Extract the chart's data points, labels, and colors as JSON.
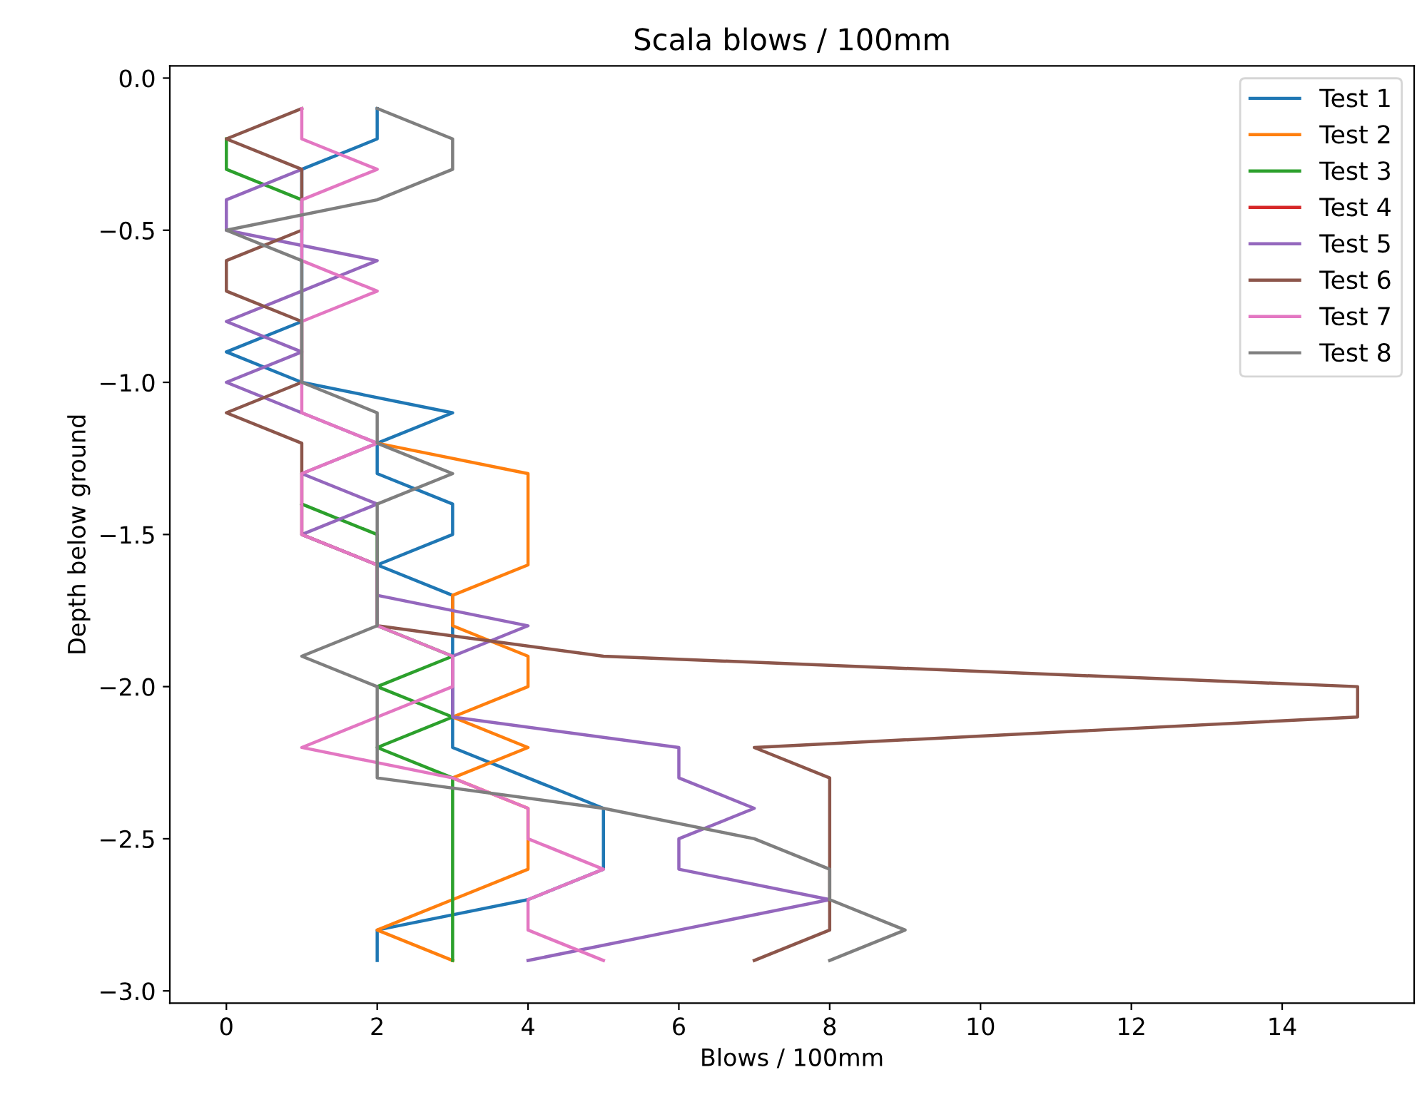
{
  "chart_data": {
    "type": "line",
    "title": "Scala blows / 100mm",
    "xlabel": "Blows / 100mm",
    "ylabel": "Depth below ground",
    "xlim": [
      -0.75,
      15.75
    ],
    "ylim": [
      -3.04,
      0.04
    ],
    "xticks": [
      0,
      2,
      4,
      6,
      8,
      10,
      12,
      14
    ],
    "yticks": [
      {
        "value": 0.0,
        "label": "0.0"
      },
      {
        "value": -0.5,
        "label": "−0.5"
      },
      {
        "value": -1.0,
        "label": "−1.0"
      },
      {
        "value": -1.5,
        "label": "−1.5"
      },
      {
        "value": -2.0,
        "label": "−2.0"
      },
      {
        "value": -2.5,
        "label": "−2.5"
      },
      {
        "value": -3.0,
        "label": "−3.0"
      }
    ],
    "grid": false,
    "legend": "top right",
    "marker": "none",
    "line_style": "solid",
    "series": [
      {
        "name": "Test 1",
        "color": "#1f77b4",
        "x": [
          2,
          2,
          1,
          1,
          1,
          1,
          1,
          1,
          0,
          1,
          3,
          2,
          2,
          3,
          3,
          2,
          3,
          3,
          3,
          3,
          3,
          3,
          4,
          5,
          5,
          5,
          4,
          2,
          2
        ],
        "values": [
          -0.1,
          -0.2,
          -0.3,
          -0.4,
          -0.5,
          -0.6,
          -0.7,
          -0.8,
          -0.9,
          -1.0,
          -1.1,
          -1.2,
          -1.3,
          -1.4,
          -1.5,
          -1.6,
          -1.7,
          -1.8,
          -1.9,
          -2.0,
          -2.1,
          -2.2,
          -2.3,
          -2.4,
          -2.5,
          -2.6,
          -2.7,
          -2.8,
          -2.9
        ]
      },
      {
        "name": "Test 2",
        "color": "#ff7f0e",
        "x": [
          2,
          4,
          4,
          4,
          4,
          3,
          3,
          4,
          4,
          3,
          4,
          3,
          4,
          4,
          4,
          3,
          2,
          3
        ],
        "values": [
          -1.2,
          -1.3,
          -1.4,
          -1.5,
          -1.6,
          -1.7,
          -1.8,
          -1.9,
          -2.0,
          -2.1,
          -2.2,
          -2.3,
          -2.4,
          -2.5,
          -2.6,
          -2.7,
          -2.8,
          -2.9
        ]
      },
      {
        "name": "Test 3",
        "color": "#2ca02c",
        "x": [
          0,
          0,
          1,
          null,
          1,
          2,
          2,
          2,
          2,
          3,
          2,
          3,
          2,
          3,
          3,
          3,
          3,
          3,
          3,
          3
        ],
        "values": [
          -0.2,
          -0.3,
          -0.4,
          null,
          -1.4,
          -1.5,
          -1.6,
          -1.7,
          -1.8,
          -1.9,
          -2.0,
          -2.1,
          -2.2,
          -2.3,
          -2.4,
          -2.5,
          -2.6,
          -2.7,
          -2.8,
          -2.9
        ]
      },
      {
        "name": "Test 4",
        "color": "#d62728"
      },
      {
        "name": "Test 5",
        "color": "#9467bd",
        "x": [
          1,
          0,
          0,
          2,
          1,
          0,
          1,
          0,
          1,
          2,
          1,
          2,
          1,
          2,
          2,
          4,
          3,
          3,
          3,
          6,
          6,
          7,
          6,
          6,
          8,
          6,
          4
        ],
        "values": [
          -0.3,
          -0.4,
          -0.5,
          -0.6,
          -0.7,
          -0.8,
          -0.9,
          -1.0,
          -1.1,
          -1.2,
          -1.3,
          -1.4,
          -1.5,
          -1.6,
          -1.7,
          -1.8,
          -1.9,
          -2.0,
          -2.1,
          -2.2,
          -2.3,
          -2.4,
          -2.5,
          -2.6,
          -2.7,
          -2.8,
          -2.9
        ]
      },
      {
        "name": "Test 6",
        "color": "#8c564b",
        "x": [
          1,
          0,
          1,
          1,
          1,
          0,
          0,
          1,
          1,
          1,
          0,
          1,
          1,
          1,
          1,
          2,
          2,
          2,
          5,
          15,
          15,
          7,
          8,
          8,
          8,
          8,
          8,
          8,
          7
        ],
        "values": [
          -0.1,
          -0.2,
          -0.3,
          -0.4,
          -0.5,
          -0.6,
          -0.7,
          -0.8,
          -0.9,
          -1.0,
          -1.1,
          -1.2,
          -1.3,
          -1.4,
          -1.5,
          -1.6,
          -1.7,
          -1.8,
          -1.9,
          -2.0,
          -2.1,
          -2.2,
          -2.3,
          -2.4,
          -2.5,
          -2.6,
          -2.7,
          -2.8,
          -2.9
        ]
      },
      {
        "name": "Test 7",
        "color": "#e377c2",
        "x": [
          1,
          1,
          2,
          1,
          1,
          1,
          2,
          1,
          1,
          1,
          1,
          2,
          1,
          1,
          1,
          2,
          2,
          2,
          3,
          3,
          2,
          1,
          3,
          4,
          4,
          5,
          4,
          4,
          5
        ],
        "values": [
          -0.1,
          -0.2,
          -0.3,
          -0.4,
          -0.5,
          -0.6,
          -0.7,
          -0.8,
          -0.9,
          -1.0,
          -1.1,
          -1.2,
          -1.3,
          -1.4,
          -1.5,
          -1.6,
          -1.7,
          -1.8,
          -1.9,
          -2.0,
          -2.1,
          -2.2,
          -2.3,
          -2.4,
          -2.5,
          -2.6,
          -2.7,
          -2.8,
          -2.9
        ]
      },
      {
        "name": "Test 8",
        "color": "#7f7f7f",
        "x": [
          2,
          3,
          3,
          2,
          0,
          1,
          1,
          1,
          1,
          1,
          2,
          2,
          3,
          2,
          2,
          2,
          2,
          2,
          1,
          2,
          2,
          2,
          2,
          5,
          7,
          8,
          8,
          9,
          8
        ],
        "values": [
          -0.1,
          -0.2,
          -0.3,
          -0.4,
          -0.5,
          -0.6,
          -0.7,
          -0.8,
          -0.9,
          -1.0,
          -1.1,
          -1.2,
          -1.3,
          -1.4,
          -1.5,
          -1.6,
          -1.7,
          -1.8,
          -1.9,
          -2.0,
          -2.1,
          -2.2,
          -2.3,
          -2.4,
          -2.5,
          -2.6,
          -2.7,
          -2.8,
          -2.9
        ]
      }
    ]
  }
}
